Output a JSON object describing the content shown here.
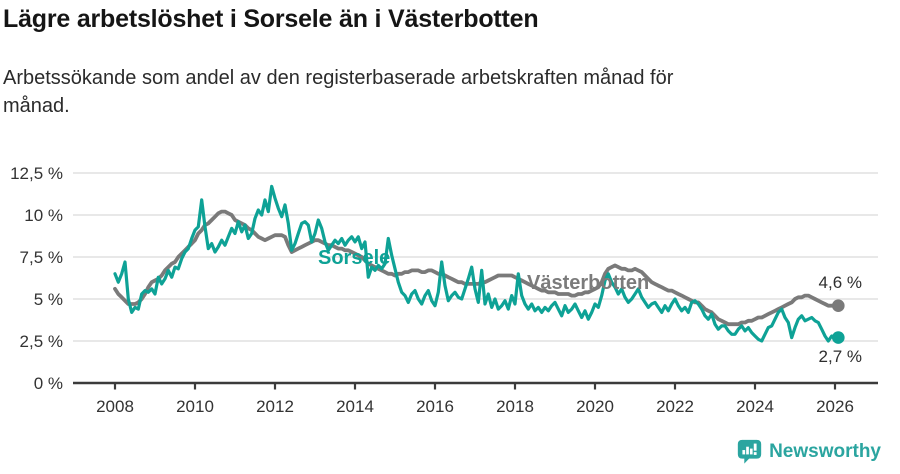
{
  "title": "Lägre arbetslöshet i Sorsele än i Västerbotten",
  "subtitle": "Arbetssökande som andel av den registerbaserade arbetskraften månad för månad.",
  "footer": {
    "brand": "Newsworthy"
  },
  "colors": {
    "sorsele_teal": "#0ea296",
    "vasterbotten_gray": "#7a7a7a",
    "axis": "#3b3b3b",
    "gridline": "#e0e0e0",
    "logo_teal": "#2ba5a0"
  },
  "chart_data": {
    "type": "line",
    "unit": "%",
    "x_start_year": 2008,
    "x_step_months": 1,
    "x_ticks": [
      2008,
      2010,
      2012,
      2014,
      2016,
      2018,
      2020,
      2022,
      2024,
      2026
    ],
    "ylim": [
      0,
      12.5
    ],
    "grid": "horizontal",
    "legend": "inline-labels",
    "y_ticks": [
      {
        "value": 0,
        "label": "0 %"
      },
      {
        "value": 2.5,
        "label": "2,5 %"
      },
      {
        "value": 5,
        "label": "5 %"
      },
      {
        "value": 7.5,
        "label": "7,5 %"
      },
      {
        "value": 10,
        "label": "10 %"
      },
      {
        "value": 12.5,
        "label": "12,5 %"
      }
    ],
    "series": [
      {
        "name": "Sorsele",
        "color": "#0ea296",
        "end_label": "2,7 %",
        "end_value": 2.7,
        "values": [
          6.5,
          6.0,
          6.5,
          7.2,
          5.0,
          4.2,
          4.5,
          4.4,
          5.3,
          5.5,
          5.4,
          5.6,
          5.3,
          6.3,
          5.9,
          6.2,
          6.7,
          6.3,
          6.9,
          6.8,
          7.4,
          7.8,
          8.0,
          8.6,
          9.1,
          9.3,
          10.9,
          9.3,
          8.0,
          8.3,
          7.8,
          8.1,
          8.5,
          8.2,
          8.7,
          9.2,
          8.9,
          9.6,
          9.0,
          9.4,
          8.6,
          8.9,
          9.8,
          10.3,
          10.0,
          10.9,
          10.2,
          11.7,
          11.0,
          10.4,
          9.9,
          10.6,
          9.5,
          7.9,
          8.3,
          8.9,
          9.5,
          9.6,
          9.4,
          8.4,
          8.9,
          9.7,
          9.2,
          8.4,
          7.9,
          8.2,
          8.5,
          8.3,
          8.6,
          8.2,
          8.5,
          8.7,
          8.4,
          8.7,
          8.0,
          8.4,
          6.3,
          6.9,
          6.7,
          7.0,
          6.8,
          7.1,
          8.6,
          7.6,
          6.8,
          6.0,
          5.4,
          5.2,
          4.8,
          5.3,
          5.5,
          5.0,
          4.7,
          5.2,
          5.5,
          4.9,
          4.6,
          5.4,
          7.2,
          5.8,
          4.9,
          5.2,
          5.4,
          5.1,
          5.0,
          5.6,
          6.2,
          6.9,
          5.6,
          4.8,
          6.7,
          4.7,
          5.3,
          4.5,
          5.0,
          4.4,
          4.6,
          4.9,
          4.4,
          5.2,
          4.7,
          6.5,
          5.2,
          4.7,
          4.4,
          4.7,
          4.3,
          4.5,
          4.2,
          4.5,
          4.3,
          4.6,
          4.8,
          4.4,
          4.0,
          4.6,
          4.2,
          4.4,
          4.7,
          4.3,
          3.9,
          4.3,
          3.8,
          4.2,
          4.7,
          4.5,
          5.2,
          6.1,
          6.5,
          6.0,
          5.7,
          5.3,
          5.6,
          5.1,
          4.8,
          5.0,
          5.3,
          5.6,
          5.1,
          4.8,
          4.5,
          4.7,
          4.8,
          4.5,
          4.2,
          4.6,
          4.3,
          4.7,
          5.0,
          4.6,
          4.3,
          4.5,
          4.2,
          4.8,
          4.9,
          4.7,
          4.4,
          4.0,
          3.8,
          4.1,
          3.5,
          3.2,
          3.4,
          3.4,
          3.1,
          2.9,
          2.9,
          3.2,
          3.4,
          3.1,
          3.3,
          3.0,
          2.8,
          2.6,
          2.5,
          2.9,
          3.3,
          3.4,
          3.8,
          4.2,
          4.4,
          3.9,
          3.6,
          2.7,
          3.3,
          3.8,
          4.0,
          3.7,
          3.8,
          3.9,
          3.7,
          3.6,
          3.2,
          2.8,
          2.5,
          2.8,
          2.6,
          2.7
        ]
      },
      {
        "name": "Västerbotten",
        "color": "#7a7a7a",
        "end_label": "4,6 %",
        "end_value": 4.6,
        "values": [
          5.6,
          5.3,
          5.1,
          4.9,
          4.7,
          4.7,
          4.7,
          4.8,
          5.0,
          5.3,
          5.7,
          6.0,
          6.1,
          6.2,
          6.4,
          6.7,
          6.9,
          7.1,
          7.2,
          7.5,
          7.7,
          7.9,
          8.1,
          8.3,
          8.5,
          8.9,
          9.1,
          9.4,
          9.5,
          9.7,
          9.9,
          10.1,
          10.2,
          10.2,
          10.1,
          10.0,
          9.7,
          9.6,
          9.5,
          9.4,
          9.2,
          9.1,
          8.9,
          8.7,
          8.6,
          8.5,
          8.6,
          8.7,
          8.8,
          8.8,
          8.8,
          8.7,
          8.2,
          7.8,
          7.9,
          8.0,
          8.1,
          8.2,
          8.3,
          8.4,
          8.5,
          8.5,
          8.4,
          8.3,
          8.2,
          8.2,
          8.1,
          8.0,
          8.0,
          7.9,
          7.9,
          7.8,
          7.7,
          7.6,
          7.5,
          7.3,
          7.1,
          7.0,
          6.9,
          6.8,
          6.7,
          6.6,
          6.5,
          6.5,
          6.4,
          6.5,
          6.5,
          6.6,
          6.6,
          6.7,
          6.7,
          6.7,
          6.6,
          6.6,
          6.7,
          6.7,
          6.6,
          6.5,
          6.5,
          6.4,
          6.3,
          6.2,
          6.1,
          6.0,
          6.0,
          5.9,
          5.9,
          5.9,
          5.9,
          5.9,
          6.0,
          6.0,
          6.1,
          6.2,
          6.3,
          6.4,
          6.4,
          6.4,
          6.4,
          6.4,
          6.3,
          6.2,
          6.1,
          6.0,
          5.9,
          5.8,
          5.7,
          5.6,
          5.5,
          5.5,
          5.4,
          5.4,
          5.4,
          5.3,
          5.3,
          5.3,
          5.3,
          5.2,
          5.2,
          5.3,
          5.3,
          5.4,
          5.4,
          5.5,
          5.6,
          5.7,
          6.0,
          6.5,
          6.8,
          6.9,
          7.0,
          6.9,
          6.8,
          6.8,
          6.7,
          6.7,
          6.8,
          6.7,
          6.6,
          6.4,
          6.2,
          6.0,
          5.9,
          5.8,
          5.7,
          5.6,
          5.5,
          5.5,
          5.4,
          5.3,
          5.2,
          5.1,
          5.0,
          4.9,
          4.8,
          4.8,
          4.6,
          4.4,
          4.3,
          4.2,
          4.0,
          3.8,
          3.7,
          3.6,
          3.5,
          3.5,
          3.5,
          3.5,
          3.6,
          3.6,
          3.7,
          3.7,
          3.8,
          3.9,
          3.9,
          4.0,
          4.1,
          4.2,
          4.3,
          4.4,
          4.5,
          4.6,
          4.7,
          4.8,
          5.0,
          5.1,
          5.1,
          5.2,
          5.2,
          5.1,
          5.0,
          4.9,
          4.8,
          4.7,
          4.6,
          4.6,
          4.6,
          4.6
        ]
      }
    ]
  }
}
